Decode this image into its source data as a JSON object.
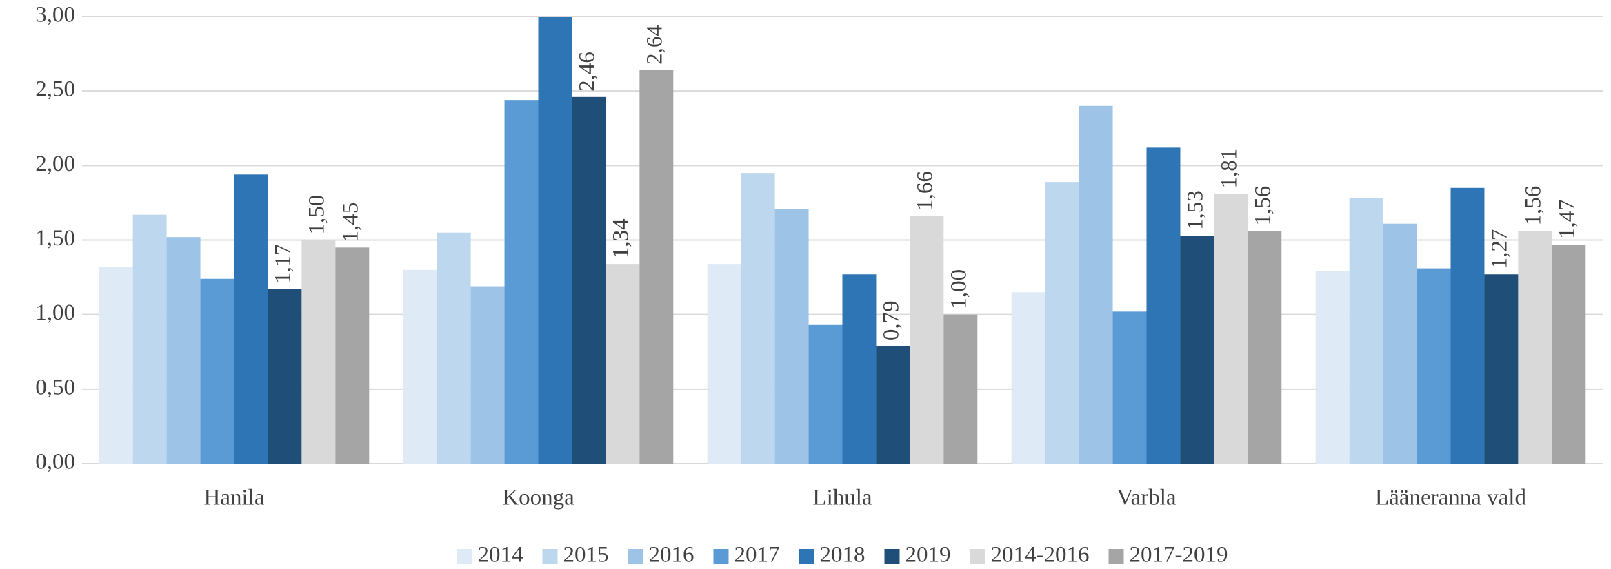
{
  "chart_data": {
    "type": "bar",
    "categories": [
      "Hanila",
      "Koonga",
      "Lihula",
      "Varbla",
      "Lääneranna vald"
    ],
    "series": [
      {
        "name": "2014",
        "color": "#deebf7",
        "values": [
          1.32,
          1.3,
          1.34,
          1.15,
          1.29
        ]
      },
      {
        "name": "2015",
        "color": "#bdd7ee",
        "values": [
          1.67,
          1.55,
          1.95,
          1.89,
          1.78
        ]
      },
      {
        "name": "2016",
        "color": "#9dc3e6",
        "values": [
          1.52,
          1.19,
          1.71,
          2.4,
          1.61
        ]
      },
      {
        "name": "2017",
        "color": "#5b9bd5",
        "values": [
          1.24,
          2.44,
          0.93,
          1.02,
          1.31
        ]
      },
      {
        "name": "2018",
        "color": "#2e75b6",
        "values": [
          1.94,
          3.0,
          1.27,
          2.12,
          1.85
        ]
      },
      {
        "name": "2019",
        "color": "#1f4e79",
        "values": [
          1.17,
          2.46,
          0.79,
          1.53,
          1.27
        ],
        "value_labels": [
          "1,17",
          "2,46",
          "0,79",
          "1,53",
          "1,27"
        ]
      },
      {
        "name": "2014-2016",
        "color": "#d9d9d9",
        "values": [
          1.5,
          1.34,
          1.66,
          1.81,
          1.56
        ],
        "value_labels": [
          "1,50",
          "1,34",
          "1,66",
          "1,81",
          "1,56"
        ]
      },
      {
        "name": "2017-2019",
        "color": "#a5a5a5",
        "values": [
          1.45,
          2.64,
          1.0,
          1.56,
          1.47
        ],
        "value_labels": [
          "1,45",
          "2,64",
          "1,00",
          "1,56",
          "1,47"
        ]
      }
    ],
    "ylim": [
      0,
      3
    ],
    "yticks": [
      {
        "value": 0,
        "label": "0,00"
      },
      {
        "value": 0.5,
        "label": "0,50"
      },
      {
        "value": 1,
        "label": "1,00"
      },
      {
        "value": 1.5,
        "label": "1,50"
      },
      {
        "value": 2,
        "label": "2,00"
      },
      {
        "value": 2.5,
        "label": "2,50"
      },
      {
        "value": 3,
        "label": "3,00"
      }
    ],
    "grid": true,
    "legend": "bottom"
  }
}
